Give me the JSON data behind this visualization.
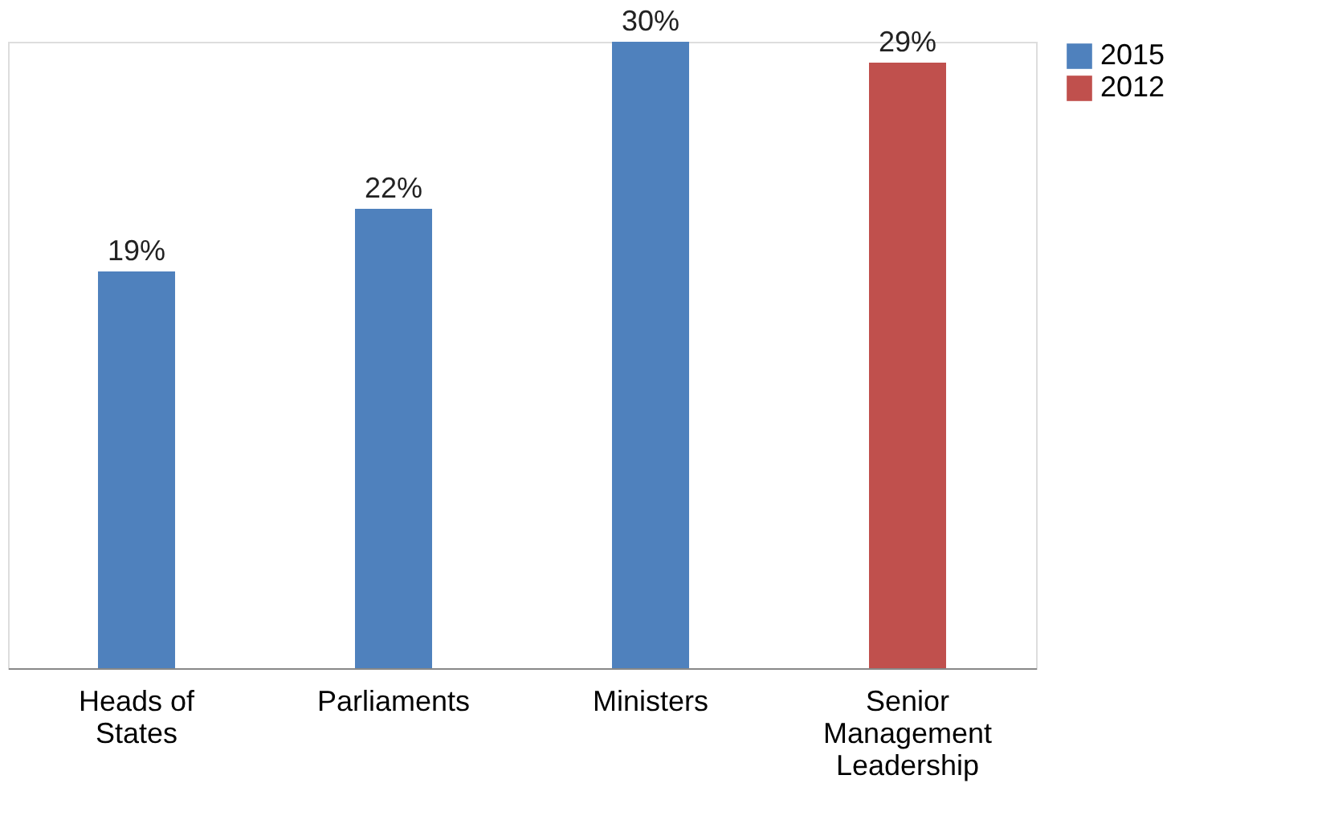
{
  "chart_data": {
    "type": "bar",
    "categories": [
      "Heads of States",
      "Parliaments",
      "Ministers",
      "Senior Management Leadership"
    ],
    "series": [
      {
        "name": "2015",
        "color": "#4f81bd",
        "values": [
          19,
          22,
          30,
          null
        ],
        "value_labels": [
          "19%",
          "22%",
          "30%",
          null
        ]
      },
      {
        "name": "2012",
        "color": "#c0504d",
        "values": [
          null,
          null,
          null,
          29
        ],
        "value_labels": [
          null,
          null,
          null,
          "29%"
        ]
      }
    ],
    "legend": "right",
    "grid": false
  }
}
